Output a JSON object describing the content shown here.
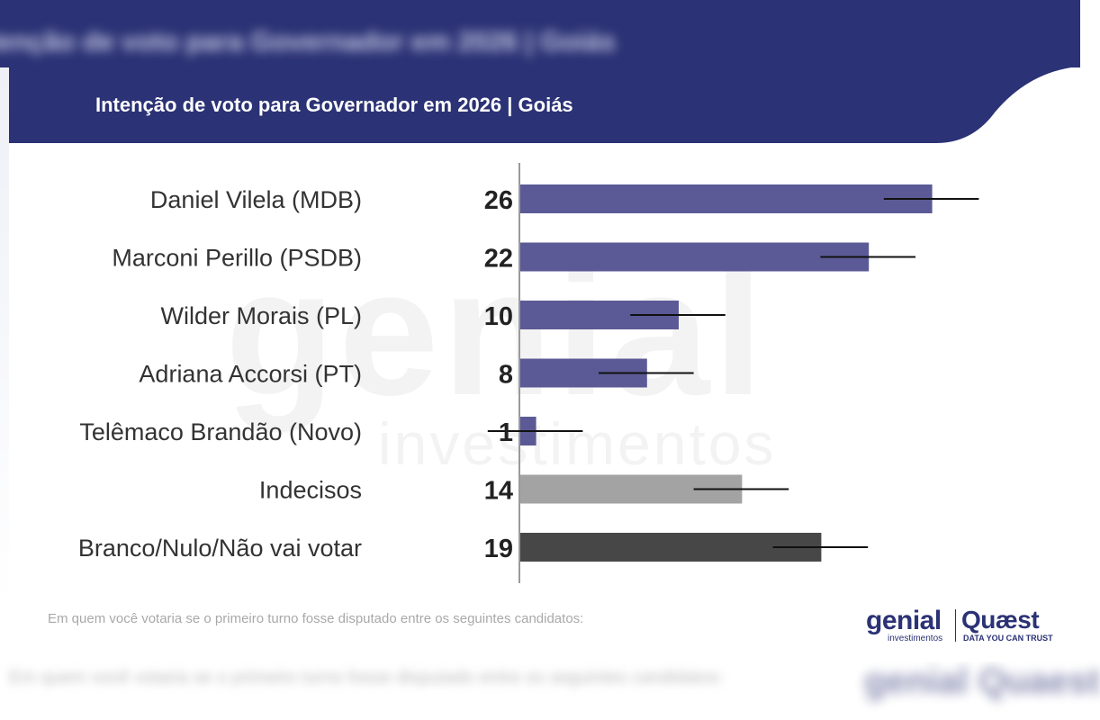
{
  "background": {
    "top_title": "Intenção de voto para Governador em 2026 | Goiás",
    "bottom_note": "Em quem você votaria se o primeiro turno fosse disputado entre os seguintes candidatos:",
    "bottom_logo": "genial Quaest"
  },
  "header": {
    "title": "Intenção de voto para Governador em 2026 | Goiás"
  },
  "watermark": {
    "big": "genial",
    "small": "investimentos"
  },
  "chart_data": {
    "type": "bar",
    "orientation": "horizontal",
    "title": "Intenção de voto para Governador em 2026 | Goiás",
    "categories": [
      "Daniel Vilela (MDB)",
      "Marconi Perillo (PSDB)",
      "Wilder Morais (PL)",
      "Adriana Accorsi (PT)",
      "Telêmaco Brandão (Novo)",
      "Indecisos",
      "Branco/Nulo/Não vai votar"
    ],
    "values": [
      26,
      22,
      10,
      8,
      1,
      14,
      19
    ],
    "value_labels": [
      "26",
      "22",
      "10",
      "8",
      "1",
      "14",
      "19"
    ],
    "error_margin": 3,
    "bar_colors": [
      "#5b5a96",
      "#5b5a96",
      "#5b5a96",
      "#5b5a96",
      "#5b5a96",
      "#a3a3a3",
      "#474747"
    ],
    "xlim": [
      0,
      30
    ],
    "xlabel": "",
    "ylabel": "",
    "grid": false,
    "legend": "none"
  },
  "footnote": "Em quem você votaria se o primeiro turno fosse disputado entre os seguintes candidatos:",
  "logos": {
    "genial": "genial",
    "genial_sub": "investimentos",
    "quaest": "Quæst",
    "quaest_sub": "DATA YOU CAN TRUST"
  },
  "colors": {
    "brand_navy": "#2b3275",
    "bar_candidate": "#5b5a96",
    "bar_undecided": "#a3a3a3",
    "bar_blank": "#474747"
  }
}
